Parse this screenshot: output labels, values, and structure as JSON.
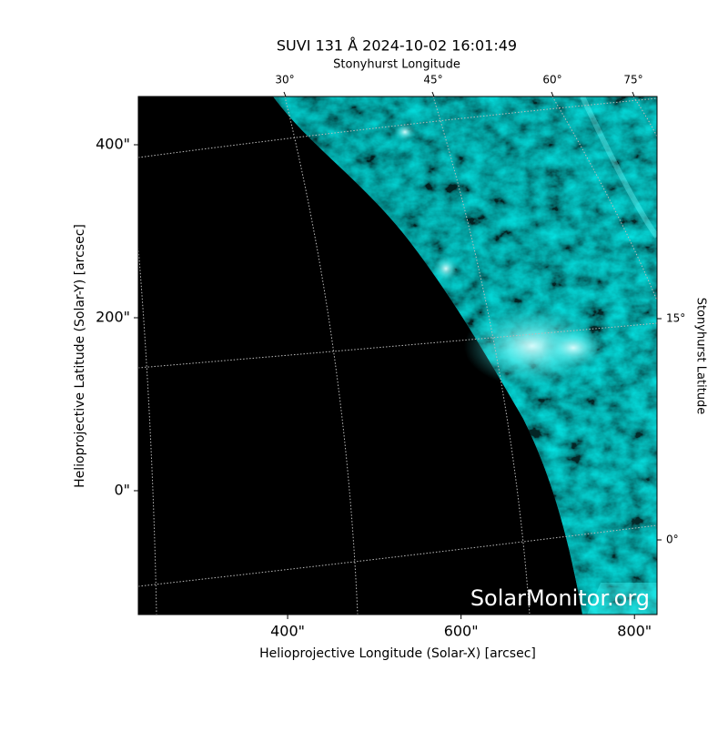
{
  "chart_data": {
    "type": "image",
    "title": "SUVI 131 Å 2024-10-02 16:01:49",
    "xlabel": "Helioprojective Longitude (Solar-X) [arcsec]",
    "ylabel": "Helioprojective Latitude (Solar-Y) [arcsec]",
    "top_axis_label": "Stonyhurst Longitude",
    "right_axis_label": "Stonyhurst Latitude",
    "xlim": [
      227.8,
      826
    ],
    "ylim": [
      -143.2,
      455.8
    ],
    "xticks": [
      {
        "value": 400,
        "label": "400\""
      },
      {
        "value": 600,
        "label": "600\""
      },
      {
        "value": 800,
        "label": "800\""
      }
    ],
    "yticks": [
      {
        "value": 0,
        "label": "0\""
      },
      {
        "value": 200,
        "label": "200\""
      },
      {
        "value": 400,
        "label": "400\""
      }
    ],
    "lon_ticks": [
      {
        "value": 30,
        "label": "30°"
      },
      {
        "value": 45,
        "label": "45°"
      },
      {
        "value": 60,
        "label": "60°"
      },
      {
        "value": 75,
        "label": "75°"
      }
    ],
    "lat_ticks": [
      {
        "value": 15,
        "label": "15°"
      },
      {
        "value": 0,
        "label": "0°"
      }
    ],
    "watermark": "SolarMonitor.org",
    "color": "#19e6e6"
  }
}
